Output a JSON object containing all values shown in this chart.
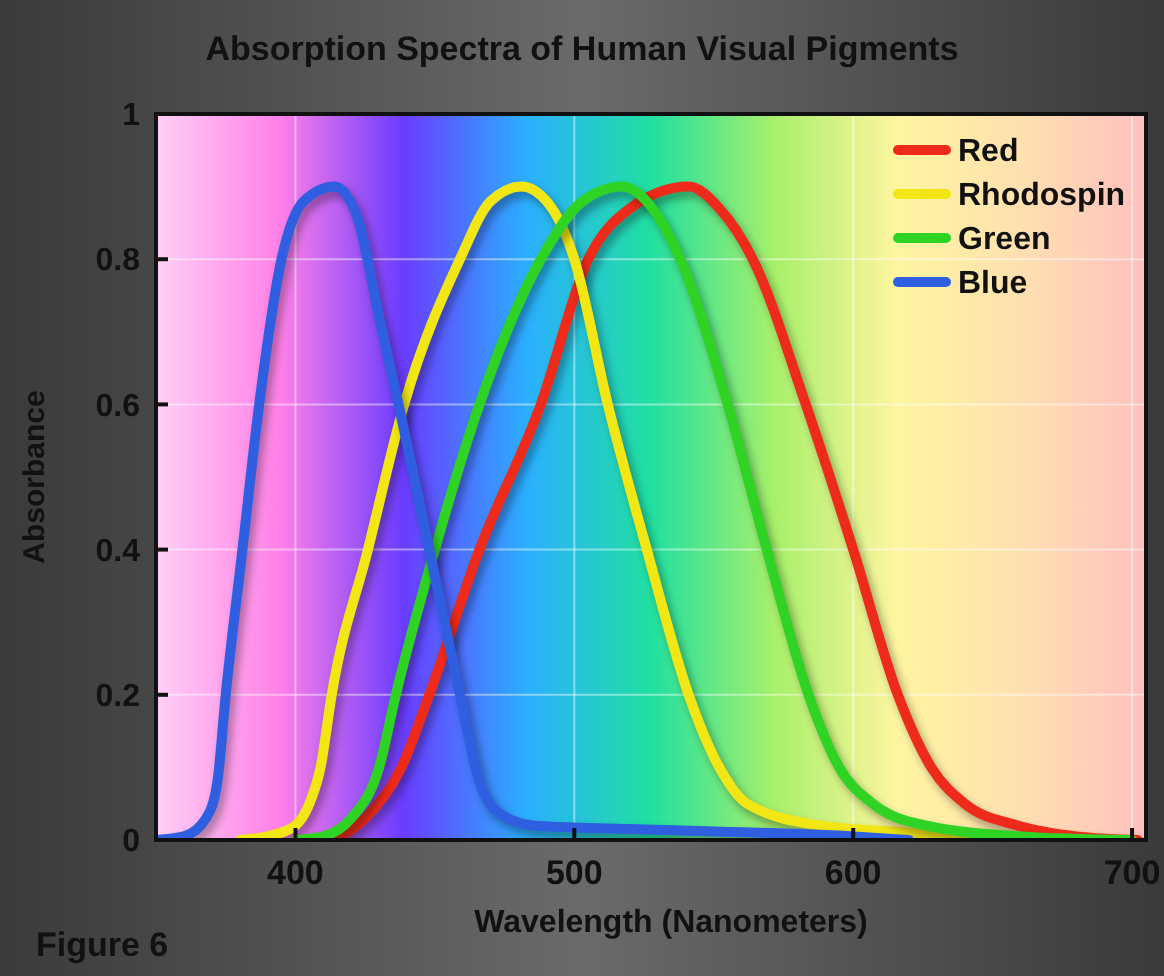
{
  "chart_data": {
    "type": "line",
    "title": "Absorption Spectra of Human Visual Pigments",
    "xlabel": "Wavelength (Nanometers)",
    "ylabel": "Absorbance",
    "annotations": [
      "Figure 6"
    ],
    "xlim": [
      350,
      705
    ],
    "xticks": [
      400,
      500,
      600,
      700
    ],
    "ylim": [
      0,
      1
    ],
    "yticks": [
      0,
      0.2,
      0.4,
      0.6,
      0.8,
      1
    ],
    "grid": true,
    "legend": "top right",
    "marker": "none",
    "line_style": "solid",
    "series": [
      {
        "name": "Red",
        "color": "#ee2a1a",
        "x": [
          400,
          415,
          425,
          438,
          448,
          466,
          488,
          505,
          520,
          541,
          552,
          564,
          583,
          600,
          616,
          628,
          640,
          659,
          680,
          702
        ],
        "values": [
          0,
          0.005,
          0.03,
          0.1,
          0.2,
          0.4,
          0.6,
          0.8,
          0.87,
          0.9,
          0.87,
          0.8,
          0.6,
          0.4,
          0.2,
          0.1,
          0.05,
          0.02,
          0.005,
          0
        ]
      },
      {
        "name": "Rhodospin",
        "color": "#f2e614",
        "x": [
          380,
          390,
          400,
          405,
          409,
          413,
          426,
          439,
          459,
          470,
          481,
          492,
          500,
          512,
          526,
          541,
          552,
          562,
          588,
          620,
          650
        ],
        "values": [
          0,
          0.005,
          0.02,
          0.05,
          0.1,
          0.2,
          0.4,
          0.6,
          0.8,
          0.88,
          0.9,
          0.87,
          0.8,
          0.6,
          0.4,
          0.2,
          0.1,
          0.05,
          0.02,
          0.01,
          0
        ]
      },
      {
        "name": "Green",
        "color": "#2ed324",
        "x": [
          400,
          410,
          420,
          430,
          436,
          450,
          466,
          488,
          503,
          517,
          528,
          538,
          555,
          569,
          584,
          595,
          607,
          626,
          660,
          700
        ],
        "values": [
          0,
          0.005,
          0.03,
          0.1,
          0.2,
          0.4,
          0.6,
          0.8,
          0.88,
          0.9,
          0.87,
          0.8,
          0.6,
          0.4,
          0.2,
          0.1,
          0.05,
          0.02,
          0.005,
          0
        ]
      },
      {
        "name": "Blue",
        "color": "#2f5fe0",
        "x": [
          350,
          360,
          368,
          372,
          375,
          381,
          387,
          395,
          403,
          414,
          422,
          430,
          437,
          448,
          459,
          466,
          472,
          485,
          520,
          600,
          620
        ],
        "values": [
          0,
          0.005,
          0.03,
          0.08,
          0.2,
          0.4,
          0.6,
          0.8,
          0.88,
          0.9,
          0.86,
          0.72,
          0.6,
          0.4,
          0.2,
          0.08,
          0.04,
          0.02,
          0.015,
          0.005,
          0
        ]
      }
    ]
  }
}
